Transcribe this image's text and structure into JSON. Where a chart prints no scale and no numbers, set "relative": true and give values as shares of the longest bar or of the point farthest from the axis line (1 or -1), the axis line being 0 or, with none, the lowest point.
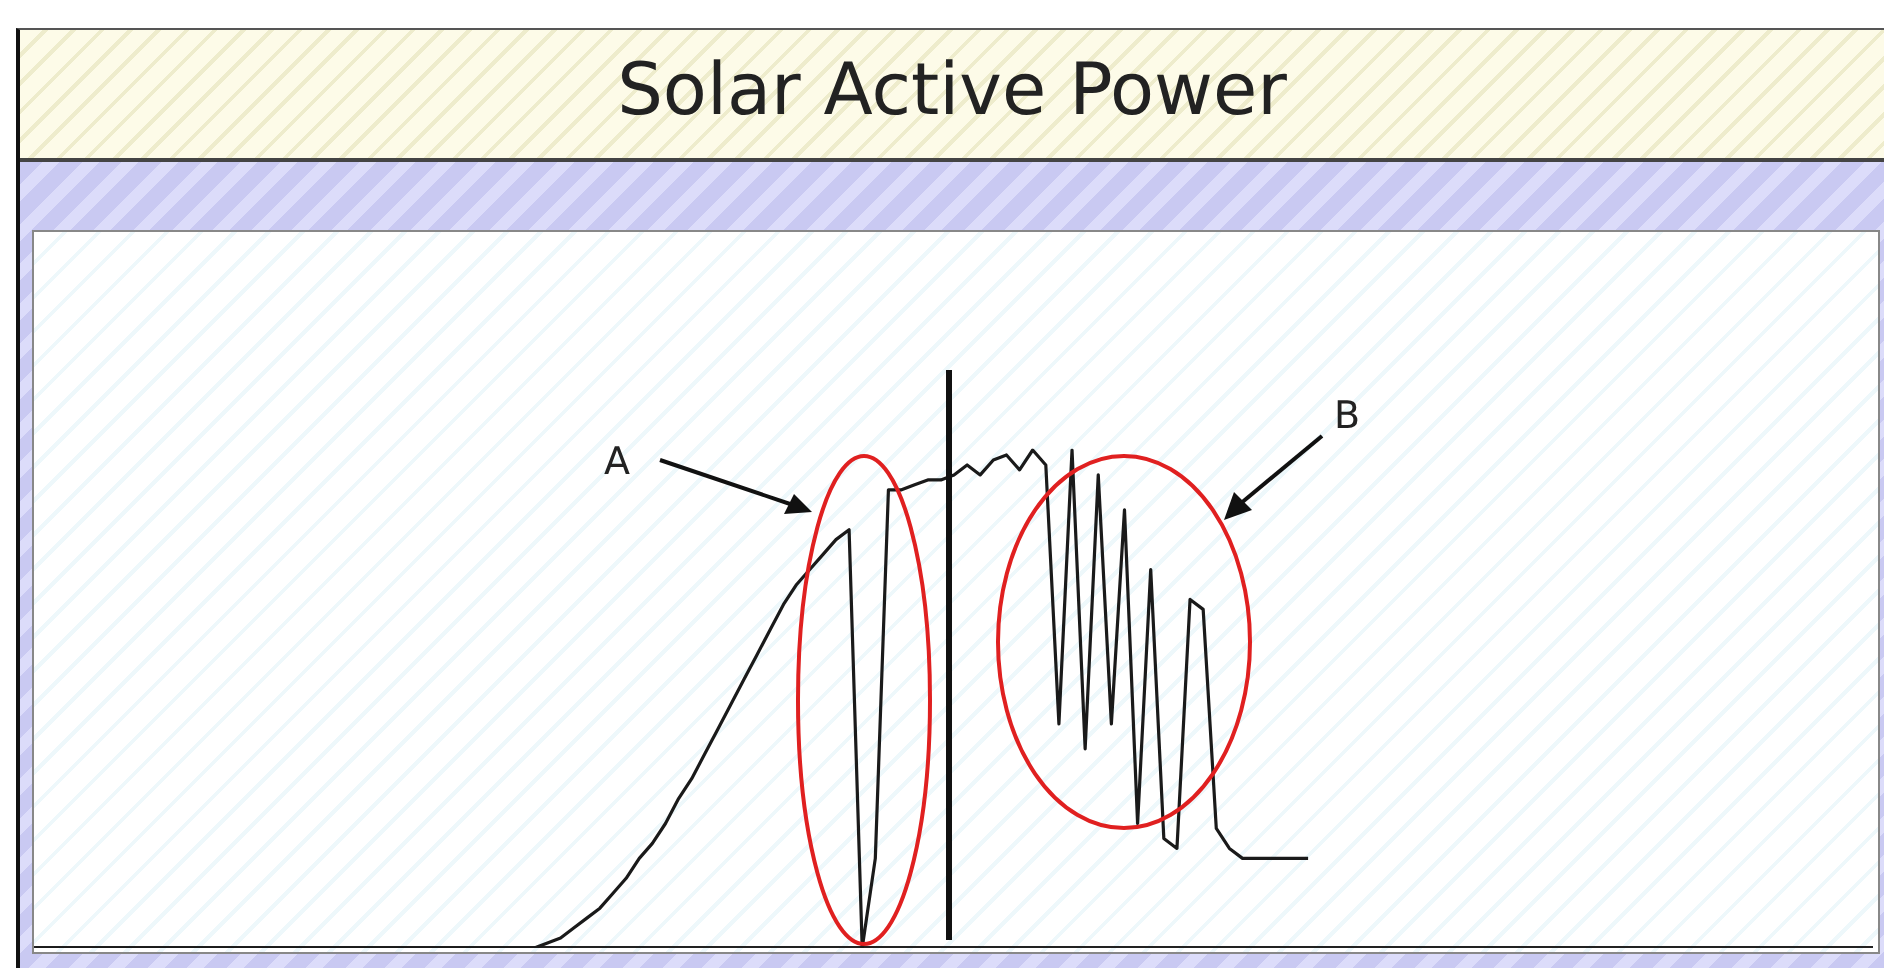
{
  "chart_data": {
    "type": "line",
    "title": "Solar Active Power",
    "relative": true,
    "annotations": [
      "A",
      "B"
    ],
    "categories": [
      null,
      null,
      null,
      null,
      null,
      null,
      null,
      null,
      null,
      null,
      null,
      null,
      null,
      null,
      null,
      null,
      null,
      null,
      null,
      null,
      null,
      null,
      null,
      null,
      null,
      null,
      null,
      null,
      null,
      null,
      null,
      null,
      null,
      null,
      null,
      null,
      null,
      null,
      null,
      null,
      null,
      null,
      null,
      null,
      null,
      null,
      null,
      null,
      null,
      null,
      null,
      null,
      null,
      null,
      null,
      null,
      null,
      null,
      null,
      null,
      null,
      null,
      null,
      null,
      null,
      null,
      null,
      null,
      null,
      null,
      null,
      null,
      null,
      null,
      null,
      null,
      null,
      null,
      null,
      null,
      null,
      null,
      null,
      null,
      null,
      null,
      null,
      null,
      null,
      null,
      null,
      null,
      null,
      null,
      null,
      null,
      null,
      null,
      null,
      null,
      null,
      null,
      null,
      null,
      null,
      null,
      null,
      null,
      null,
      null,
      null,
      null,
      null,
      null,
      null,
      null,
      null,
      null,
      null,
      null,
      null,
      null,
      null,
      null,
      null,
      null,
      null,
      null,
      null,
      null,
      null,
      null,
      null,
      null,
      null,
      null,
      null,
      null,
      null,
      null,
      null
    ],
    "series": [
      {
        "color": "#1a1a1a",
        "values": [
          0,
          0,
          0,
          0,
          0,
          0,
          0,
          0,
          0,
          0,
          0,
          0,
          0,
          0,
          0,
          0,
          0,
          0,
          0,
          0,
          0,
          0,
          0,
          0,
          0,
          0,
          0,
          0,
          0,
          0,
          0,
          0,
          0,
          0,
          0,
          0,
          0,
          0,
          0,
          0.01,
          0.02,
          0.04,
          0.06,
          0.08,
          0.11,
          0.14,
          0.18,
          0.21,
          0.25,
          0.3,
          0.34,
          0.39,
          0.44,
          0.49,
          0.54,
          0.59,
          0.64,
          0.69,
          0.73,
          0.76,
          0.79,
          0.82,
          0.84,
          0,
          0.18,
          0.92,
          0.92,
          0.93,
          0.94,
          0.94,
          0.95,
          0.97,
          0.95,
          0.98,
          0.99,
          0.96,
          1,
          0.97,
          0.45,
          1,
          0.4,
          0.95,
          0.45,
          0.88,
          0.25,
          0.76,
          0.22,
          0.2,
          0.7,
          0.68,
          0.24,
          0.2,
          0.18,
          0.18,
          0.18,
          0.18,
          0.18,
          0.18,
          null,
          null,
          null,
          null,
          null,
          null,
          null,
          null,
          null,
          null,
          null,
          null,
          null,
          null,
          null,
          null,
          null,
          null,
          null,
          null,
          null,
          null,
          null,
          null,
          null,
          null,
          null,
          null,
          null,
          null,
          null,
          null,
          null,
          null,
          null,
          null,
          null,
          null,
          null,
          null,
          null,
          null,
          null
        ]
      }
    ]
  }
}
